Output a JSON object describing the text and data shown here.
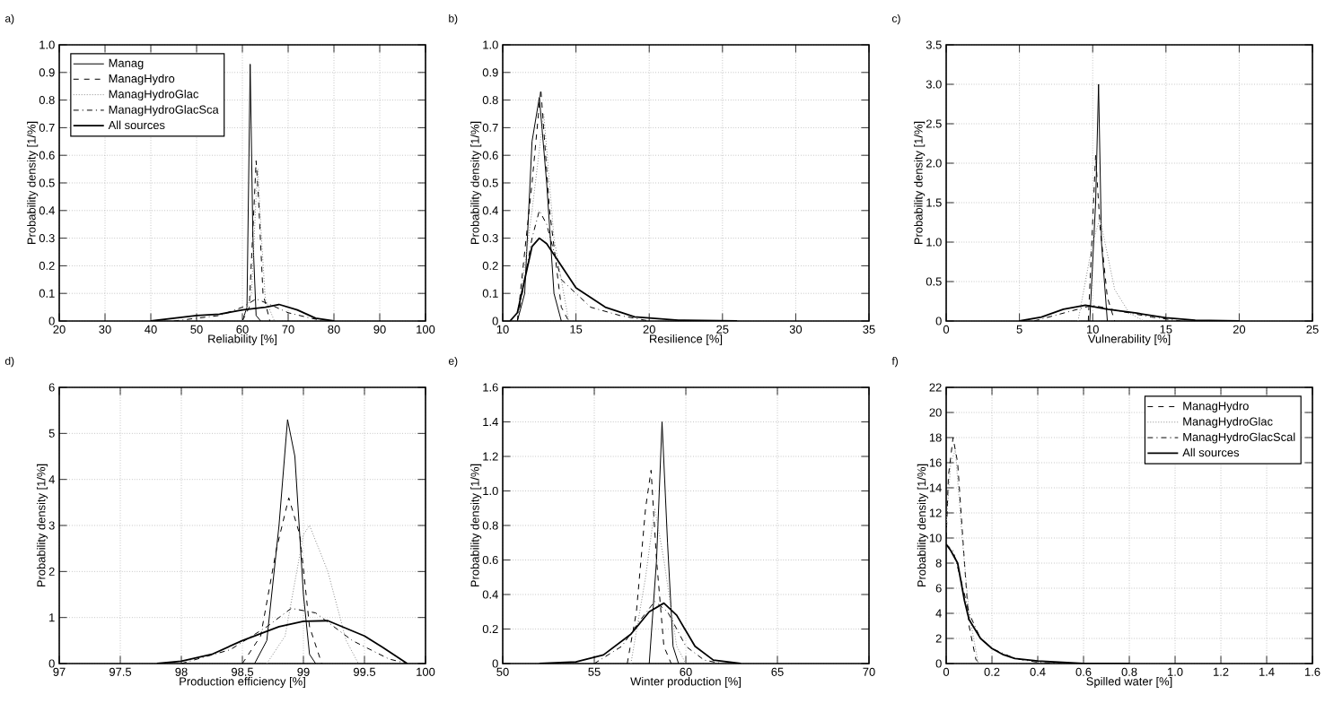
{
  "chart_data": [
    {
      "type": "line",
      "title": "a)",
      "xlabel": "Reliability [%]",
      "ylabel": "Probability density [1/%]",
      "xlim": [
        20,
        100
      ],
      "ylim": [
        0,
        1
      ],
      "xticks": [
        20,
        30,
        40,
        50,
        60,
        70,
        80,
        90,
        100
      ],
      "yticks": [
        0,
        0.1,
        0.2,
        0.3,
        0.4,
        0.5,
        0.6,
        0.7,
        0.8,
        0.9,
        {
          "value": 1,
          "label": "1.0"
        }
      ],
      "grid": true,
      "legend": "top left",
      "series": [
        {
          "name": "Manag",
          "color": "#000000",
          "line_style": "solid",
          "x": [
            60,
            61,
            61.7,
            62.3,
            63,
            64
          ],
          "values": [
            0,
            0.05,
            0.93,
            0.3,
            0.02,
            0
          ]
        },
        {
          "name": "ManagHydro",
          "color": "#000000",
          "line_style": "dashed",
          "x": [
            60,
            61.5,
            62.5,
            63,
            63.5,
            64.5,
            66
          ],
          "values": [
            0,
            0.05,
            0.4,
            0.58,
            0.45,
            0.1,
            0
          ]
        },
        {
          "name": "ManagHydroGlac",
          "color": "#888888",
          "line_style": "dotted",
          "x": [
            60,
            62,
            63,
            63.4,
            64,
            65,
            67
          ],
          "values": [
            0,
            0.1,
            0.45,
            0.55,
            0.35,
            0.08,
            0
          ]
        },
        {
          "name": "ManagHydroGlacSca",
          "color": "#000000",
          "line_style": "dashdot",
          "x": [
            45,
            55,
            60,
            63,
            66,
            70,
            75,
            78
          ],
          "values": [
            0,
            0.02,
            0.05,
            0.08,
            0.06,
            0.03,
            0.01,
            0
          ]
        },
        {
          "name": "All sources",
          "color": "#000000",
          "line_style": "solid",
          "x": [
            40,
            45,
            50,
            55,
            60,
            65,
            68,
            72,
            76,
            80
          ],
          "values": [
            0,
            0.01,
            0.02,
            0.025,
            0.04,
            0.05,
            0.06,
            0.04,
            0.01,
            0
          ]
        }
      ]
    },
    {
      "type": "line",
      "title": "b)",
      "xlabel": "Resilience [%]",
      "ylabel": "Probability density [1/%]",
      "xlim": [
        10,
        35
      ],
      "ylim": [
        0,
        1
      ],
      "xticks": [
        10,
        15,
        20,
        25,
        30,
        35
      ],
      "yticks": [
        0,
        0.1,
        0.2,
        0.3,
        0.4,
        0.5,
        0.6,
        0.7,
        0.8,
        0.9,
        {
          "value": 1,
          "label": "1.0"
        }
      ],
      "grid": true,
      "series": [
        {
          "color": "#000000",
          "line_style": "solid",
          "x": [
            11,
            11.5,
            12,
            12.5,
            13,
            13.5,
            14
          ],
          "values": [
            0,
            0.1,
            0.65,
            0.81,
            0.5,
            0.1,
            0
          ]
        },
        {
          "color": "#000000",
          "line_style": "dashed",
          "x": [
            11,
            12,
            12.6,
            13.2,
            14,
            14.5
          ],
          "values": [
            0,
            0.5,
            0.84,
            0.4,
            0.05,
            0
          ]
        },
        {
          "color": "#888888",
          "line_style": "dotted",
          "x": [
            11,
            12,
            12.8,
            13.5,
            14.5
          ],
          "values": [
            0,
            0.4,
            0.75,
            0.3,
            0
          ]
        },
        {
          "color": "#000000",
          "line_style": "dashdot",
          "x": [
            11,
            12,
            12.5,
            13,
            14,
            16,
            18,
            20
          ],
          "values": [
            0,
            0.3,
            0.4,
            0.35,
            0.15,
            0.05,
            0.02,
            0
          ]
        },
        {
          "color": "#000000",
          "line_style": "solid",
          "x": [
            10.5,
            11,
            11.5,
            12,
            12.5,
            13,
            14,
            15,
            17,
            19,
            22,
            26
          ],
          "values": [
            0,
            0.03,
            0.15,
            0.27,
            0.3,
            0.28,
            0.2,
            0.12,
            0.05,
            0.015,
            0.003,
            0
          ]
        }
      ]
    },
    {
      "type": "line",
      "title": "c)",
      "xlabel": "Vulnerability [%]",
      "ylabel": "Probability density [1/%]",
      "xlim": [
        0,
        25
      ],
      "ylim": [
        0,
        3.5
      ],
      "xticks": [
        0,
        5,
        10,
        15,
        20,
        25
      ],
      "yticks": [
        0,
        0.5,
        {
          "value": 1,
          "label": "1.0"
        },
        1.5,
        {
          "value": 2,
          "label": "2.0"
        },
        2.5,
        {
          "value": 3,
          "label": "3.0"
        },
        3.5
      ],
      "grid": true,
      "series": [
        {
          "color": "#000000",
          "line_style": "solid",
          "x": [
            9.8,
            10.2,
            10.4,
            10.6,
            11
          ],
          "values": [
            0,
            1.5,
            3.0,
            1.0,
            0
          ]
        },
        {
          "color": "#000000",
          "line_style": "dashed",
          "x": [
            9.7,
            10.2,
            10.5,
            11,
            11.5
          ],
          "values": [
            0,
            2.1,
            1.2,
            0.3,
            0
          ]
        },
        {
          "color": "#888888",
          "line_style": "dotted",
          "x": [
            9,
            10,
            10.5,
            11.5,
            12.5,
            13.5
          ],
          "values": [
            0,
            1.0,
            1.3,
            0.4,
            0.1,
            0
          ]
        },
        {
          "color": "#000000",
          "line_style": "dashdot",
          "x": [
            6,
            8,
            10,
            12,
            14,
            16
          ],
          "values": [
            0,
            0.1,
            0.2,
            0.12,
            0.05,
            0
          ]
        },
        {
          "color": "#000000",
          "line_style": "solid",
          "x": [
            5,
            6.5,
            8,
            9.5,
            11,
            13,
            15,
            17,
            20
          ],
          "values": [
            0,
            0.05,
            0.15,
            0.2,
            0.15,
            0.1,
            0.04,
            0.01,
            0
          ]
        }
      ]
    },
    {
      "type": "line",
      "title": "d)",
      "xlabel": "Production efficiency [%]",
      "ylabel": "Probability density [1/%]",
      "xlim": [
        97,
        100
      ],
      "ylim": [
        0,
        6
      ],
      "xticks": [
        97,
        97.5,
        98,
        98.5,
        99,
        99.5,
        100
      ],
      "yticks": [
        0,
        1,
        2,
        3,
        4,
        5,
        6
      ],
      "grid": true,
      "series": [
        {
          "color": "#000000",
          "line_style": "solid",
          "x": [
            98.6,
            98.7,
            98.8,
            98.87,
            98.93,
            99.0,
            99.05,
            99.1
          ],
          "values": [
            0,
            0.5,
            3,
            5.3,
            4.5,
            1.5,
            0.2,
            0
          ]
        },
        {
          "color": "#000000",
          "line_style": "dashed",
          "x": [
            98.5,
            98.65,
            98.78,
            98.88,
            98.97,
            99.05,
            99.15
          ],
          "values": [
            0,
            0.6,
            2.5,
            3.6,
            2.8,
            0.8,
            0
          ]
        },
        {
          "color": "#888888",
          "line_style": "dotted",
          "x": [
            98.7,
            98.85,
            99.0,
            99.05,
            99.2,
            99.35,
            99.45
          ],
          "values": [
            0,
            0.6,
            2.8,
            3.0,
            2,
            0.5,
            0
          ]
        },
        {
          "color": "#000000",
          "line_style": "dashdot",
          "x": [
            98.0,
            98.4,
            98.7,
            98.9,
            99.1,
            99.4,
            99.7,
            99.85
          ],
          "values": [
            0,
            0.3,
            0.8,
            1.2,
            1.1,
            0.5,
            0.1,
            0
          ]
        },
        {
          "color": "#000000",
          "line_style": "solid",
          "x": [
            97.8,
            98.0,
            98.25,
            98.5,
            98.8,
            99.0,
            99.2,
            99.5,
            99.65,
            99.85
          ],
          "values": [
            0,
            0.05,
            0.2,
            0.5,
            0.8,
            0.92,
            0.93,
            0.6,
            0.35,
            0
          ]
        }
      ]
    },
    {
      "type": "line",
      "title": "e)",
      "xlabel": "Winter production [%]",
      "ylabel": "Probability density [1/%]",
      "xlim": [
        50,
        70
      ],
      "ylim": [
        0,
        1.6
      ],
      "xticks": [
        50,
        55,
        60,
        65,
        70
      ],
      "yticks": [
        0,
        0.2,
        0.4,
        0.6,
        0.8,
        {
          "value": 1,
          "label": "1.0"
        },
        1.2,
        1.4,
        1.6
      ],
      "grid": true,
      "series": [
        {
          "color": "#000000",
          "line_style": "solid",
          "x": [
            58,
            58.4,
            58.7,
            59,
            59.3,
            59.6
          ],
          "values": [
            0,
            0.6,
            1.4,
            0.7,
            0.1,
            0
          ]
        },
        {
          "color": "#000000",
          "line_style": "dashed",
          "x": [
            56.8,
            57.3,
            57.8,
            58.1,
            58.4,
            58.8,
            59.2
          ],
          "values": [
            0,
            0.3,
            0.9,
            1.12,
            0.6,
            0.1,
            0
          ]
        },
        {
          "color": "#888888",
          "line_style": "dotted",
          "x": [
            57,
            57.8,
            58.3,
            58.8,
            59.5,
            60
          ],
          "values": [
            0,
            0.5,
            0.9,
            0.6,
            0.1,
            0
          ]
        },
        {
          "color": "#000000",
          "line_style": "dashdot",
          "x": [
            55,
            56.5,
            57.5,
            58.3,
            59,
            60,
            61,
            62
          ],
          "values": [
            0,
            0.1,
            0.25,
            0.36,
            0.3,
            0.1,
            0.02,
            0
          ]
        },
        {
          "color": "#000000",
          "line_style": "solid",
          "x": [
            52,
            54,
            55.5,
            57,
            58,
            58.8,
            59.5,
            60.5,
            61.5,
            63
          ],
          "values": [
            0,
            0.01,
            0.05,
            0.17,
            0.3,
            0.35,
            0.28,
            0.1,
            0.02,
            0
          ]
        }
      ]
    },
    {
      "type": "line",
      "title": "f)",
      "xlabel": "Spilled water [%]",
      "ylabel": "Probability density [1/%]",
      "xlim": [
        0,
        1.6
      ],
      "ylim": [
        0,
        22
      ],
      "xticks": [
        0,
        0.2,
        0.4,
        0.6,
        0.8,
        {
          "value": 1,
          "label": "1.0"
        },
        1.2,
        1.4,
        1.6
      ],
      "yticks": [
        0,
        2,
        4,
        6,
        8,
        10,
        12,
        14,
        16,
        18,
        20,
        22
      ],
      "grid": true,
      "legend": "top right",
      "series": [
        {
          "name": "ManagHydro",
          "color": "#000000",
          "line_style": "dashed",
          "x": [
            0,
            0.01,
            0.03,
            0.05,
            0.08,
            0.1,
            0.13,
            0.15
          ],
          "values": [
            10,
            15,
            18,
            16,
            8,
            3,
            0.3,
            0
          ]
        },
        {
          "name": "ManagHydroGlac",
          "color": "#888888",
          "line_style": "dotted",
          "x": [
            0,
            0.02,
            0.04,
            0.07,
            0.1,
            0.14
          ],
          "values": [
            11,
            16,
            17,
            10,
            4,
            0
          ]
        },
        {
          "name": "ManagHydroGlacScal",
          "color": "#000000",
          "line_style": "dashdot",
          "x": [
            0,
            0.03,
            0.06,
            0.1,
            0.15,
            0.2,
            0.3,
            0.4,
            0.5
          ],
          "values": [
            9.5,
            9,
            7,
            4,
            2,
            1.2,
            0.4,
            0.1,
            0
          ]
        },
        {
          "name": "All sources",
          "color": "#000000",
          "line_style": "solid",
          "x": [
            0,
            0.02,
            0.05,
            0.08,
            0.1,
            0.15,
            0.2,
            0.25,
            0.3,
            0.4,
            0.5,
            0.6,
            0.8
          ],
          "values": [
            9.5,
            9,
            8,
            5,
            3.5,
            2,
            1.2,
            0.7,
            0.4,
            0.2,
            0.1,
            0,
            0
          ]
        }
      ]
    }
  ]
}
